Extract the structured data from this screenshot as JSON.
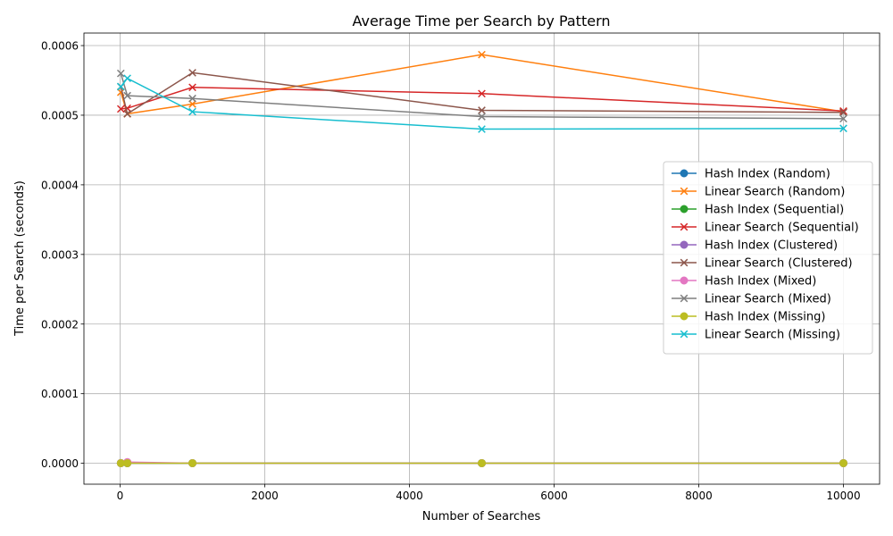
{
  "chart_data": {
    "type": "line",
    "title": "Average Time per Search by Pattern",
    "xlabel": "Number of Searches",
    "ylabel": "Time per Search (seconds)",
    "xlim": [
      -500,
      10500
    ],
    "ylim": [
      -3e-05,
      0.000618
    ],
    "xticks": [
      0,
      2000,
      4000,
      6000,
      8000,
      10000
    ],
    "xtick_labels": [
      "0",
      "2000",
      "4000",
      "6000",
      "8000",
      "10000"
    ],
    "yticks": [
      0,
      0.0001,
      0.0002,
      0.0003,
      0.0004,
      0.0005,
      0.0006
    ],
    "ytick_labels": [
      "0.0000",
      "0.0001",
      "0.0002",
      "0.0003",
      "0.0004",
      "0.0005",
      "0.0006"
    ],
    "grid": true,
    "legend_position": "center-right",
    "x": [
      10,
      100,
      1000,
      5000,
      10000
    ],
    "series": [
      {
        "name": "Hash Index (Random)",
        "marker": "o",
        "color": "#1f77b4",
        "values": [
          2e-07,
          3e-07,
          2e-07,
          2e-07,
          2e-07
        ]
      },
      {
        "name": "Linear Search (Random)",
        "marker": "x",
        "color": "#ff7f0e",
        "values": [
          0.000533,
          0.000502,
          0.000516,
          0.000587,
          0.000505
        ]
      },
      {
        "name": "Hash Index (Sequential)",
        "marker": "o",
        "color": "#2ca02c",
        "values": [
          3e-07,
          2e-07,
          2e-07,
          2e-07,
          2e-07
        ]
      },
      {
        "name": "Linear Search (Sequential)",
        "marker": "x",
        "color": "#d62728",
        "values": [
          0.000509,
          0.00051,
          0.00054,
          0.000531,
          0.000506
        ]
      },
      {
        "name": "Hash Index (Clustered)",
        "marker": "o",
        "color": "#9467bd",
        "values": [
          3e-07,
          2e-07,
          2e-07,
          2e-07,
          2e-07
        ]
      },
      {
        "name": "Linear Search (Clustered)",
        "marker": "x",
        "color": "#8c564b",
        "values": [
          0.000541,
          0.000502,
          0.000561,
          0.000507,
          0.000504
        ]
      },
      {
        "name": "Hash Index (Mixed)",
        "marker": "o",
        "color": "#e377c2",
        "values": [
          3e-07,
          1.8e-06,
          2e-07,
          2e-07,
          2e-07
        ]
      },
      {
        "name": "Linear Search (Mixed)",
        "marker": "x",
        "color": "#7f7f7f",
        "values": [
          0.00056,
          0.000528,
          0.000524,
          0.000498,
          0.000495
        ]
      },
      {
        "name": "Hash Index (Missing)",
        "marker": "o",
        "color": "#bcbd22",
        "values": [
          2e-07,
          2e-07,
          2e-07,
          2e-07,
          2e-07
        ]
      },
      {
        "name": "Linear Search (Missing)",
        "marker": "x",
        "color": "#17becf",
        "values": [
          0.000541,
          0.000553,
          0.000505,
          0.00048,
          0.000481
        ]
      }
    ]
  }
}
